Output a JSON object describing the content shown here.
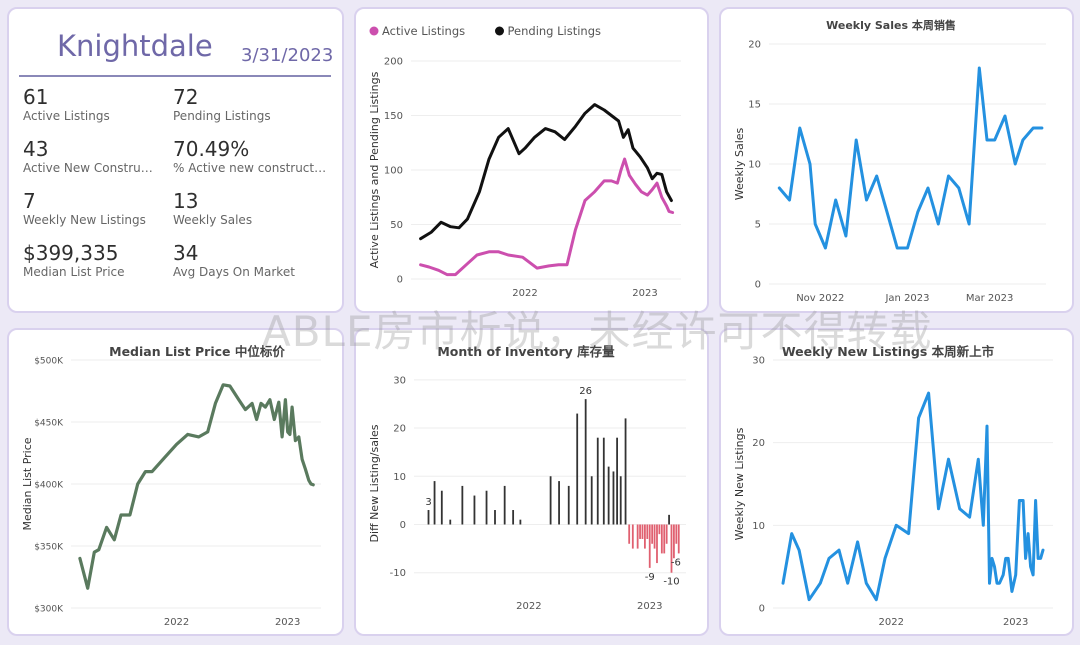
{
  "kpi_panel": {
    "city": "Knightdale",
    "date": "3/31/2023",
    "items": [
      {
        "value": "61",
        "label": "Active Listings"
      },
      {
        "value": "72",
        "label": "Pending Listings"
      },
      {
        "value": "43",
        "label": "Active New Constructions"
      },
      {
        "value": "70.49%",
        "label": "% Active new constructions"
      },
      {
        "value": "7",
        "label": "Weekly New Listings"
      },
      {
        "value": "13",
        "label": "Weekly Sales"
      },
      {
        "value": "$399,335",
        "label": "Median List Price"
      },
      {
        "value": "34",
        "label": "Avg Days On Market"
      }
    ]
  },
  "watermark": "ABLE房市析说，未经许可不得转载",
  "colors": {
    "active": "#cc4fae",
    "pending": "#111111",
    "blue": "#2491e0",
    "green": "#5a7a5e",
    "pos_bar": "#333333",
    "neg_bar": "#e06070"
  },
  "chart_data": [
    {
      "id": "listings",
      "type": "line",
      "title": "",
      "xlabel": "",
      "ylabel": "Active Listings and Pending Listings",
      "legend": "top-left",
      "ylim": [
        0,
        200
      ],
      "yticks": [
        0,
        50,
        100,
        150,
        200
      ],
      "xticks": [
        {
          "x": 2022,
          "label": "2022"
        },
        {
          "x": 2023,
          "label": "2023"
        }
      ],
      "xlim": [
        2021.05,
        2023.3
      ],
      "series": [
        {
          "name": "Active Listings",
          "color": "#cc4fae",
          "x": [
            2021.13,
            2021.2,
            2021.28,
            2021.35,
            2021.42,
            2021.52,
            2021.6,
            2021.7,
            2021.78,
            2021.86,
            2021.98,
            2022.1,
            2022.2,
            2022.28,
            2022.35,
            2022.42,
            2022.5,
            2022.58,
            2022.66,
            2022.72,
            2022.77,
            2022.8,
            2022.83,
            2022.87,
            2022.92,
            2022.97,
            2023.02,
            2023.06,
            2023.1,
            2023.14,
            2023.18,
            2023.2,
            2023.23
          ],
          "y": [
            13,
            11,
            8,
            4,
            4,
            14,
            22,
            25,
            25,
            22,
            20,
            10,
            12,
            13,
            13,
            45,
            72,
            80,
            90,
            90,
            88,
            100,
            110,
            95,
            87,
            80,
            77,
            82,
            88,
            75,
            67,
            62,
            61
          ]
        },
        {
          "name": "Pending Listings",
          "color": "#111111",
          "x": [
            2021.13,
            2021.22,
            2021.3,
            2021.38,
            2021.45,
            2021.52,
            2021.62,
            2021.7,
            2021.78,
            2021.86,
            2021.95,
            2022.0,
            2022.08,
            2022.17,
            2022.25,
            2022.33,
            2022.42,
            2022.5,
            2022.58,
            2022.66,
            2022.72,
            2022.78,
            2022.82,
            2022.86,
            2022.9,
            2022.96,
            2023.02,
            2023.06,
            2023.1,
            2023.14,
            2023.18,
            2023.22
          ],
          "y": [
            37,
            43,
            52,
            48,
            47,
            55,
            80,
            110,
            130,
            138,
            115,
            120,
            130,
            138,
            135,
            128,
            140,
            152,
            160,
            155,
            150,
            145,
            130,
            137,
            120,
            112,
            102,
            92,
            97,
            96,
            80,
            72
          ]
        }
      ]
    },
    {
      "id": "weekly_sales",
      "type": "line",
      "title": "Weekly Sales 本周销售",
      "xlabel": "",
      "ylabel": "Weekly Sales",
      "ylim": [
        0,
        20
      ],
      "yticks": [
        0,
        5,
        10,
        15,
        20
      ],
      "xticks": [
        {
          "x": 2022.83,
          "label": "Nov 2022"
        },
        {
          "x": 2023.0,
          "label": "Jan 2023"
        },
        {
          "x": 2023.16,
          "label": "Mar 2023"
        }
      ],
      "xlim": [
        2022.73,
        2023.27
      ],
      "series": [
        {
          "name": "",
          "color": "#2491e0",
          "x": [
            2022.75,
            2022.77,
            2022.79,
            2022.81,
            2022.82,
            2022.84,
            2022.86,
            2022.88,
            2022.9,
            2022.92,
            2022.94,
            2022.96,
            2022.98,
            2023.0,
            2023.02,
            2023.04,
            2023.06,
            2023.08,
            2023.1,
            2023.12,
            2023.14,
            2023.155,
            2023.17,
            2023.19,
            2023.21,
            2023.225,
            2023.245,
            2023.262
          ],
          "y": [
            8,
            7,
            13,
            10,
            5,
            3,
            7,
            4,
            12,
            7,
            9,
            6,
            3,
            3,
            6,
            8,
            5,
            9,
            8,
            5,
            18,
            12,
            12,
            14,
            10,
            12,
            13,
            13
          ]
        }
      ]
    },
    {
      "id": "median_list_price",
      "type": "line",
      "title": "Median List Price  中位标价",
      "xlabel": "",
      "ylabel": "Median List Price",
      "ylim": [
        300000,
        500000
      ],
      "yticks": [
        {
          "v": 300000,
          "label": "$300K"
        },
        {
          "v": 350000,
          "label": "$350K"
        },
        {
          "v": 400000,
          "label": "$400K"
        },
        {
          "v": 450000,
          "label": "$450K"
        },
        {
          "v": 500000,
          "label": "$500K"
        }
      ],
      "xticks": [
        {
          "x": 2022,
          "label": "2022"
        },
        {
          "x": 2023,
          "label": "2023"
        }
      ],
      "xlim": [
        2021.05,
        2023.3
      ],
      "series": [
        {
          "name": "",
          "color": "#5a7a5e",
          "x": [
            2021.13,
            2021.2,
            2021.26,
            2021.3,
            2021.37,
            2021.44,
            2021.5,
            2021.58,
            2021.65,
            2021.72,
            2021.78,
            2021.9,
            2022.0,
            2022.1,
            2022.2,
            2022.28,
            2022.35,
            2022.42,
            2022.48,
            2022.56,
            2022.62,
            2022.68,
            2022.72,
            2022.76,
            2022.8,
            2022.84,
            2022.88,
            2022.92,
            2022.95,
            2022.98,
            2023.0,
            2023.02,
            2023.04,
            2023.07,
            2023.1,
            2023.13,
            2023.16,
            2023.19,
            2023.21,
            2023.23
          ],
          "y": [
            340000,
            316000,
            345000,
            347000,
            365000,
            355000,
            375000,
            375000,
            400000,
            410000,
            410000,
            422000,
            432000,
            440000,
            438000,
            442000,
            465000,
            480000,
            479000,
            468000,
            460000,
            465000,
            452000,
            465000,
            462000,
            468000,
            452000,
            466000,
            438000,
            468000,
            442000,
            440000,
            462000,
            435000,
            438000,
            420000,
            412000,
            403000,
            400000,
            399335
          ]
        }
      ]
    },
    {
      "id": "months_inventory",
      "type": "bar",
      "title": "Month of Inventory 库存量",
      "xlabel": "",
      "ylabel": "Diff New Listing/sales",
      "ylim": [
        -14,
        31
      ],
      "yticks": [
        -10,
        0,
        10,
        20,
        30
      ],
      "xticks": [
        {
          "x": 2022,
          "label": "2022"
        },
        {
          "x": 2023,
          "label": "2023"
        }
      ],
      "xlim": [
        2021.05,
        2023.3
      ],
      "annotations": [
        {
          "x": 2021.17,
          "y": 3,
          "label": "3"
        },
        {
          "x": 2022.47,
          "y": 26,
          "label": "26"
        },
        {
          "x": 2023.0,
          "y": -9,
          "label": "-9"
        },
        {
          "x": 2023.2,
          "y": -6,
          "label": "-6"
        },
        {
          "x": 2023.18,
          "y": -10,
          "label": "-10"
        }
      ],
      "bars": {
        "x": [
          2021.17,
          2021.22,
          2021.28,
          2021.35,
          2021.45,
          2021.55,
          2021.65,
          2021.72,
          2021.8,
          2021.87,
          2021.93,
          2022.18,
          2022.25,
          2022.33,
          2022.4,
          2022.47,
          2022.52,
          2022.57,
          2022.62,
          2022.66,
          2022.7,
          2022.73,
          2022.76,
          2022.8,
          2022.83,
          2022.86,
          2022.9,
          2022.92,
          2022.94,
          2022.96,
          2022.98,
          2023.0,
          2023.02,
          2023.04,
          2023.06,
          2023.08,
          2023.1,
          2023.12,
          2023.14,
          2023.16,
          2023.18,
          2023.2,
          2023.22,
          2023.24
        ],
        "values": [
          3,
          9,
          7,
          1,
          8,
          6,
          7,
          3,
          8,
          3,
          1,
          10,
          9,
          8,
          23,
          26,
          10,
          18,
          18,
          12,
          11,
          18,
          10,
          22,
          -4,
          -5,
          -5,
          -3,
          -3,
          -5,
          -3,
          -9,
          -4,
          -5,
          -8,
          -2,
          -6,
          -6,
          -4,
          2,
          -10,
          -7,
          -4,
          -6
        ]
      }
    },
    {
      "id": "weekly_new_listings",
      "type": "line",
      "title": "Weekly New Listings  本周新上市",
      "xlabel": "",
      "ylabel": "Weekly New Listings",
      "ylim": [
        0,
        30
      ],
      "yticks": [
        0,
        10,
        20,
        30
      ],
      "xticks": [
        {
          "x": 2022,
          "label": "2022"
        },
        {
          "x": 2023,
          "label": "2023"
        }
      ],
      "xlim": [
        2021.05,
        2023.3
      ],
      "series": [
        {
          "name": "",
          "color": "#2491e0",
          "x": [
            2021.13,
            2021.2,
            2021.26,
            2021.34,
            2021.43,
            2021.5,
            2021.58,
            2021.65,
            2021.73,
            2021.8,
            2021.88,
            2021.95,
            2022.04,
            2022.14,
            2022.22,
            2022.3,
            2022.38,
            2022.46,
            2022.55,
            2022.63,
            2022.7,
            2022.74,
            2022.77,
            2022.79,
            2022.81,
            2022.83,
            2022.85,
            2022.87,
            2022.9,
            2022.92,
            2022.94,
            2022.97,
            2023.0,
            2023.03,
            2023.06,
            2023.08,
            2023.1,
            2023.12,
            2023.14,
            2023.16,
            2023.18,
            2023.2,
            2023.22
          ],
          "y": [
            3,
            9,
            7,
            1,
            3,
            6,
            7,
            3,
            8,
            3,
            1,
            6,
            10,
            9,
            23,
            26,
            12,
            18,
            12,
            11,
            18,
            10,
            22,
            3,
            6,
            5,
            3,
            3,
            4,
            6,
            6,
            2,
            4,
            13,
            13,
            6,
            9,
            5,
            4,
            13,
            6,
            6,
            7
          ]
        }
      ]
    }
  ]
}
